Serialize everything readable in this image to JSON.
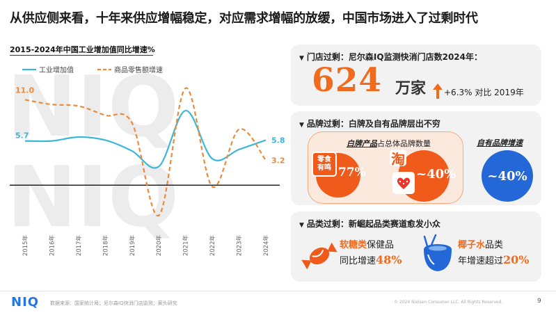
{
  "title": "从供应侧来看，十年来供应增幅稳定，对应需求增幅的放缓，中国市场进入了过剩时代",
  "watermark": "NIQ",
  "chart_data": {
    "type": "line",
    "title": "2015-2024年中国工业增加值同比增速%",
    "categories": [
      "2015年",
      "2016年",
      "2017年",
      "2018年",
      "2019年",
      "2020年",
      "2021年",
      "2022年",
      "2023年",
      "2024年"
    ],
    "series": [
      {
        "name": "工业增加值",
        "color": "#3ab6d9",
        "style": "solid",
        "values": [
          5.7,
          5.7,
          6.2,
          5.8,
          4.4,
          2.4,
          9.6,
          3.4,
          4.6,
          5.8
        ]
      },
      {
        "name": "商品零售额增速",
        "color": "#e98a3c",
        "style": "dashed",
        "values": [
          11.0,
          10.4,
          10.2,
          9.0,
          8.0,
          -3.9,
          12.5,
          -0.2,
          7.2,
          3.2
        ]
      }
    ],
    "data_labels": [
      {
        "text": "11.0",
        "series": 1,
        "index": 0,
        "color": "#e98a3c"
      },
      {
        "text": "5.7",
        "series": 0,
        "index": 0,
        "color": "#3ab6d9"
      },
      {
        "text": "5.8",
        "series": 0,
        "index": 9,
        "color": "#3ab6d9"
      },
      {
        "text": "3.2",
        "series": 1,
        "index": 9,
        "color": "#e98a3c"
      }
    ],
    "ylim": [
      -5,
      14
    ],
    "zero_line": true,
    "grid": false,
    "legend": "top-left"
  },
  "panel1": {
    "heading": "门店过剩：尼尔森IQ监测快消门店数2024年：",
    "number": "624",
    "unit": "万家",
    "growth": "+6.3% 对比 2019年",
    "accent": "#f26a1b"
  },
  "panel2": {
    "heading": "品牌过剩：白牌及自有品牌层出不穷",
    "white_brand_prefix": "白牌产品",
    "white_brand_suffix": "占总体品牌数量",
    "snack_logo": "零食\n有鸣",
    "snack_pct": "77%",
    "taobao_logo": "淘",
    "taobao_pct": "~40%",
    "own_brand_label": "自有品牌增速",
    "own_brand_pct": "~40%",
    "orange": "#f05a1a",
    "blue": "#2468d8"
  },
  "panel3": {
    "heading": "品类过剩：新崛起品类赛道愈发小众",
    "item1_highlight": "软糖类",
    "item1_rest": "保健品",
    "item1_line2": "同比增速",
    "item1_pct": "48%",
    "item2_highlight": "椰子水",
    "item2_rest": "品类",
    "item2_line2": "年增速超过",
    "item2_pct": "20%"
  },
  "footer": {
    "logo": "NIQ",
    "source": "数据来源：国家统计局；尼尔森IQ快消门店监测；案头研究",
    "copyright": "© 2024 Nielsen Consumer LLC. All Rights Reserved.",
    "page": "9"
  }
}
